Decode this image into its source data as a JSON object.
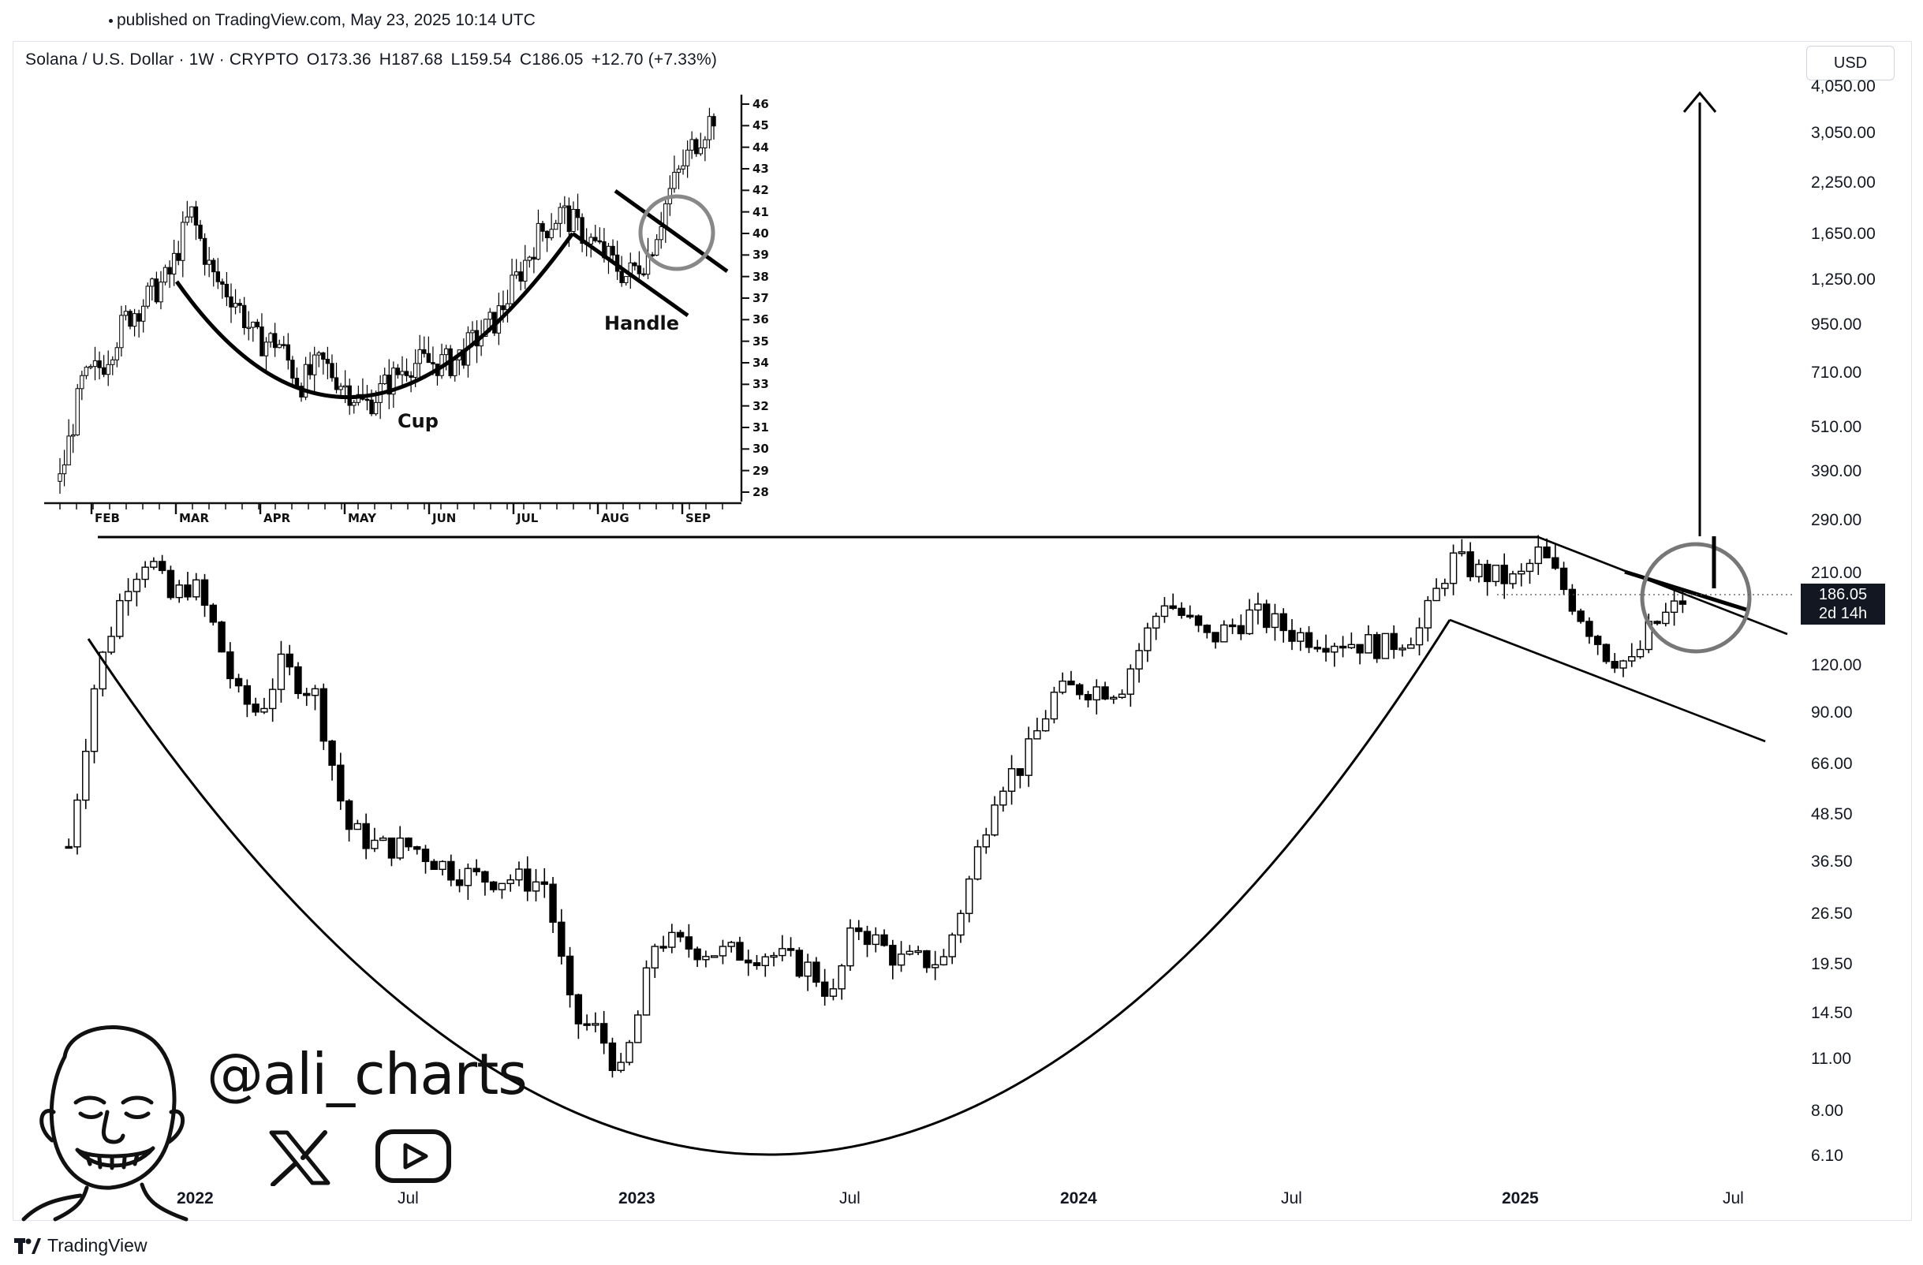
{
  "header": {
    "published": "published on TradingView.com, May 23, 2025 10:14 UTC"
  },
  "legend": {
    "symbol": "Solana / U.S. Dollar · 1W · CRYPTO",
    "open": "O173.36",
    "high": "H187.68",
    "low": "L159.54",
    "close": "C186.05",
    "change": "+12.70 (+7.33%)"
  },
  "currency_button": "USD",
  "price_tag": {
    "price": "186.05",
    "countdown": "2d 14h"
  },
  "footer": {
    "brand": "TradingView"
  },
  "watermark": {
    "handle": "@ali_charts"
  },
  "icons": {
    "x": "x-logo-icon",
    "youtube": "youtube-icon",
    "avatar": "avatar-caricature",
    "tradingview": "tradingview-logo-icon"
  },
  "colors": {
    "candles": "#000000",
    "background": "#ffffff",
    "price_tag": "#131722"
  },
  "chart_data": [
    {
      "type": "candlestick",
      "title": "Solana / U.S. Dollar · 1W · CRYPTO",
      "scale": "log",
      "y_axis_labels": [
        "4,050.00",
        "3,050.00",
        "2,250.00",
        "1,650.00",
        "1,250.00",
        "950.00",
        "710.00",
        "510.00",
        "390.00",
        "290.00",
        "210.00",
        "120.00",
        "90.00",
        "66.00",
        "48.50",
        "36.50",
        "26.50",
        "19.50",
        "14.50",
        "11.00",
        "8.00",
        "6.10"
      ],
      "y_axis_values": [
        4050,
        3050,
        2250,
        1650,
        1250,
        950,
        710,
        510,
        390,
        290,
        210,
        120,
        90,
        66,
        48.5,
        36.5,
        26.5,
        19.5,
        14.5,
        11,
        8,
        6.1
      ],
      "x_axis_labels": [
        "2022",
        "Jul",
        "2023",
        "Jul",
        "2024",
        "Jul",
        "2025",
        "Jul"
      ],
      "x_axis_bold": [
        true,
        false,
        true,
        false,
        true,
        false,
        true,
        false
      ],
      "x_axis_dates": [
        2022.0,
        2022.5,
        2023.0,
        2023.5,
        2024.0,
        2024.5,
        2025.0,
        2025.5
      ],
      "current_price": 186.05,
      "approx_close_path": [
        [
          2021.72,
          40
        ],
        [
          2021.78,
          110
        ],
        [
          2021.85,
          200
        ],
        [
          2021.9,
          235
        ],
        [
          2021.95,
          180
        ],
        [
          2022.0,
          200
        ],
        [
          2022.05,
          150
        ],
        [
          2022.1,
          100
        ],
        [
          2022.15,
          90
        ],
        [
          2022.2,
          120
        ],
        [
          2022.28,
          100
        ],
        [
          2022.35,
          45
        ],
        [
          2022.42,
          40
        ],
        [
          2022.5,
          40
        ],
        [
          2022.58,
          35
        ],
        [
          2022.65,
          33
        ],
        [
          2022.72,
          33
        ],
        [
          2022.8,
          32
        ],
        [
          2022.86,
          14
        ],
        [
          2022.92,
          13
        ],
        [
          2022.97,
          10
        ],
        [
          2023.0,
          13
        ],
        [
          2023.05,
          23
        ],
        [
          2023.1,
          22
        ],
        [
          2023.2,
          21
        ],
        [
          2023.3,
          21
        ],
        [
          2023.4,
          19
        ],
        [
          2023.45,
          16
        ],
        [
          2023.5,
          25
        ],
        [
          2023.6,
          20
        ],
        [
          2023.7,
          20
        ],
        [
          2023.75,
          30
        ],
        [
          2023.82,
          58
        ],
        [
          2023.88,
          66
        ],
        [
          2023.95,
          100
        ],
        [
          2024.0,
          105
        ],
        [
          2024.1,
          105
        ],
        [
          2024.2,
          180
        ],
        [
          2024.3,
          140
        ],
        [
          2024.4,
          165
        ],
        [
          2024.5,
          145
        ],
        [
          2024.6,
          140
        ],
        [
          2024.7,
          135
        ],
        [
          2024.78,
          150
        ],
        [
          2024.85,
          230
        ],
        [
          2024.92,
          210
        ],
        [
          2025.0,
          200
        ],
        [
          2025.05,
          240
        ],
        [
          2025.12,
          180
        ],
        [
          2025.2,
          130
        ],
        [
          2025.26,
          120
        ],
        [
          2025.3,
          150
        ],
        [
          2025.35,
          168
        ],
        [
          2025.39,
          186.05
        ]
      ],
      "annotations": [
        "cup curve",
        "resistance line",
        "descending handle channel",
        "breakout circle",
        "upward target arrow"
      ]
    },
    {
      "type": "candlestick",
      "y_axis_labels": [
        "46",
        "45",
        "44",
        "43",
        "42",
        "41",
        "40",
        "39",
        "38",
        "37",
        "36",
        "35",
        "34",
        "33",
        "32",
        "31",
        "30",
        "29",
        "28"
      ],
      "x_axis_labels": [
        "FEB",
        "MAR",
        "APR",
        "MAY",
        "JUN",
        "JUL",
        "AUG",
        "SEP"
      ],
      "annotations": [
        "Cup",
        "Handle"
      ],
      "approx_close_path": [
        [
          0,
          28.5
        ],
        [
          1,
          33
        ],
        [
          2,
          34
        ],
        [
          3,
          36
        ],
        [
          4,
          37
        ],
        [
          5,
          38
        ],
        [
          6,
          41
        ],
        [
          7,
          38
        ],
        [
          8,
          37
        ],
        [
          9,
          35
        ],
        [
          10,
          35
        ],
        [
          11,
          33
        ],
        [
          12,
          34
        ],
        [
          13,
          33
        ],
        [
          14,
          32
        ],
        [
          15,
          33
        ],
        [
          16,
          34
        ],
        [
          17,
          34
        ],
        [
          18,
          34
        ],
        [
          19,
          35
        ],
        [
          20,
          36
        ],
        [
          21,
          38
        ],
        [
          22,
          40
        ],
        [
          23,
          41
        ],
        [
          24,
          40
        ],
        [
          25,
          39
        ],
        [
          26,
          38
        ],
        [
          27,
          39
        ],
        [
          28,
          42
        ],
        [
          29,
          44
        ],
        [
          30,
          45.5
        ]
      ]
    }
  ]
}
